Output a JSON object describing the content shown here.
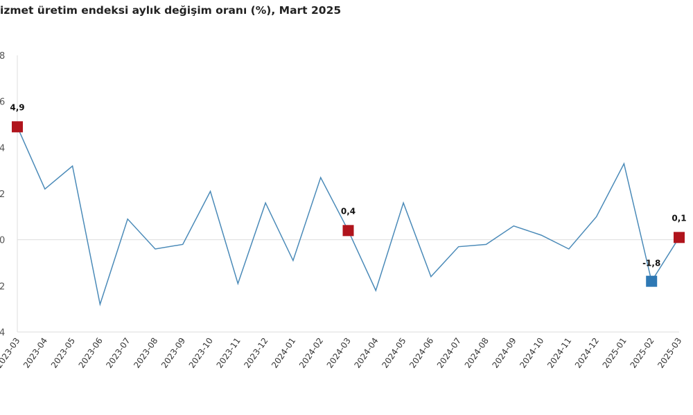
{
  "chart_data": {
    "type": "line",
    "title": "izmet üretim endeksi aylık değişim oranı (%), Mart 2025",
    "xlabel": "",
    "ylabel": "",
    "ylim": [
      -4,
      8
    ],
    "y_ticks": [
      8,
      6,
      4,
      2,
      0,
      -2,
      -4
    ],
    "y_tick_labels": [
      "8",
      "6",
      "4",
      "2",
      "0",
      "2",
      "4"
    ],
    "grid": "zero-line only",
    "categories": [
      "2023-03",
      "2023-04",
      "2023-05",
      "2023-06",
      "2023-07",
      "2023-08",
      "2023-09",
      "2023-10",
      "2023-11",
      "2023-12",
      "2024-01",
      "2024-02",
      "2024-03",
      "2024-04",
      "2024-05",
      "2024-06",
      "2024-07",
      "2024-08",
      "2024-09",
      "2024-10",
      "2024-11",
      "2024-12",
      "2025-01",
      "2025-02",
      "2025-03"
    ],
    "series": [
      {
        "name": "Aylık değişim (%)",
        "color": "#4a8ab8",
        "values": [
          4.9,
          2.2,
          3.2,
          -2.8,
          0.9,
          -0.4,
          -0.2,
          2.1,
          -1.9,
          1.6,
          -0.9,
          2.7,
          0.4,
          -2.2,
          1.6,
          -1.6,
          -0.3,
          -0.2,
          0.6,
          0.2,
          -0.4,
          1.0,
          3.3,
          -1.8,
          0.1
        ]
      }
    ],
    "highlighted_points": [
      {
        "category": "2023-03",
        "value": 4.9,
        "label": "4,9",
        "color": "#b0141c"
      },
      {
        "category": "2024-03",
        "value": 0.4,
        "label": "0,4",
        "color": "#b0141c"
      },
      {
        "category": "2025-02",
        "value": -1.8,
        "label": "-1,8",
        "color": "#2e78b4"
      },
      {
        "category": "2025-03",
        "value": 0.1,
        "label": "0,1",
        "color": "#b0141c"
      }
    ]
  }
}
